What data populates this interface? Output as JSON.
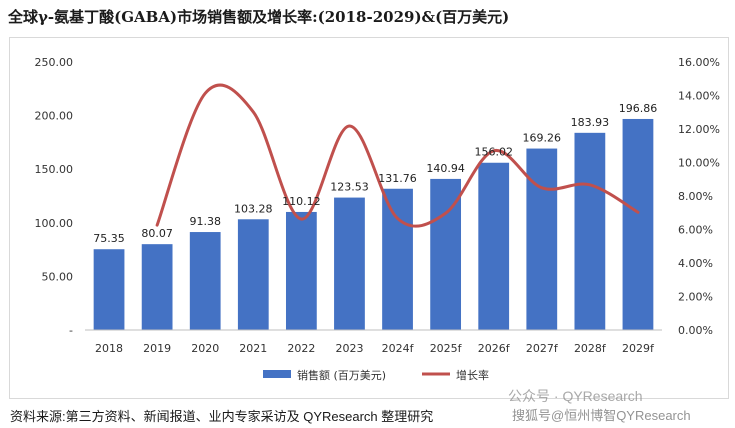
{
  "title": "全球γ-氨基丁酸(GABA)市场销售额及增长率:(2018-2029)&(百万美元)",
  "source": "资料来源:第三方资料、新闻报道、业内专家采访及 QYResearch 整理研究",
  "watermark": "公众号 · QYResearch",
  "watermark2": "搜狐号@恒州博智QYResearch",
  "chart_data": {
    "type": "bar",
    "categories": [
      "2018",
      "2019",
      "2020",
      "2021",
      "2022",
      "2023",
      "2024f",
      "2025f",
      "2026f",
      "2027f",
      "2028f",
      "2029f"
    ],
    "series": [
      {
        "name": "销售额 (百万美元)",
        "type": "bar",
        "axis": "left",
        "values": [
          75.35,
          80.07,
          91.38,
          103.28,
          110.12,
          123.53,
          131.76,
          140.94,
          156.02,
          169.26,
          183.93,
          196.86
        ],
        "labels": [
          "75.35",
          "80.07",
          "91.38",
          "103.28",
          "110.12",
          "123.53",
          "131.76",
          "140.94",
          "156.02",
          "169.26",
          "183.93",
          "196.86"
        ]
      },
      {
        "name": "增长率",
        "type": "line",
        "axis": "right",
        "values": [
          null,
          6.26,
          14.13,
          13.02,
          6.62,
          12.18,
          6.66,
          6.97,
          10.7,
          8.49,
          8.67,
          7.03
        ]
      }
    ],
    "ylim": [
      0,
      250
    ],
    "yticks": [
      "-",
      "50.00",
      "100.00",
      "150.00",
      "200.00",
      "250.00"
    ],
    "y2lim": [
      0,
      16
    ],
    "y2ticks": [
      "0.00%",
      "2.00%",
      "4.00%",
      "6.00%",
      "8.00%",
      "10.00%",
      "12.00%",
      "14.00%",
      "16.00%"
    ],
    "legend_position": "bottom",
    "grid": false,
    "colors": {
      "bar": "#4472C4",
      "line": "#C0504D"
    }
  }
}
